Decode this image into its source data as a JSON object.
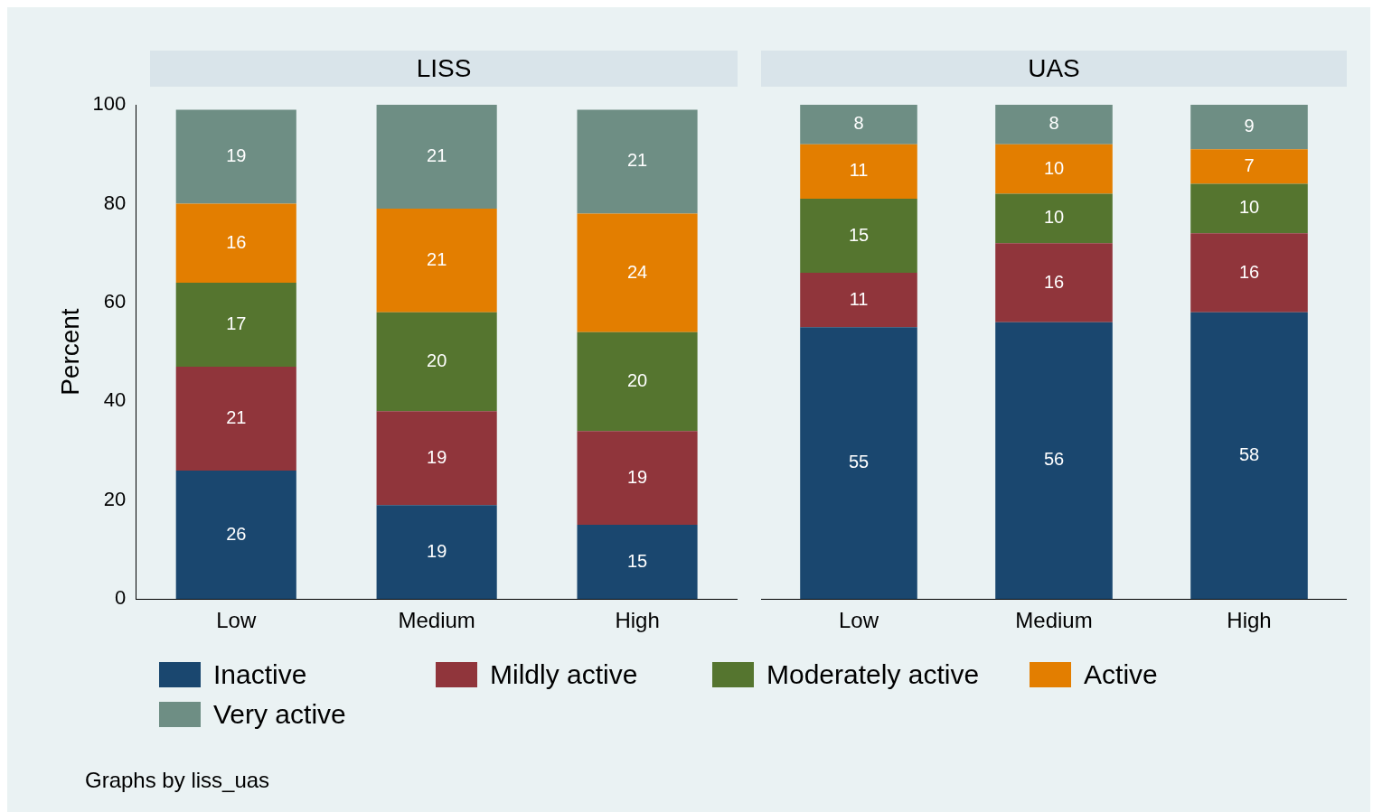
{
  "chart_data": [
    {
      "type": "bar",
      "title": "LISS",
      "ylabel": "Percent",
      "categories": [
        "Low",
        "Medium",
        "High"
      ],
      "stacked": true,
      "ylim": [
        0,
        100
      ],
      "yticks": [
        0,
        20,
        40,
        60,
        80,
        100
      ],
      "data_labels": true,
      "legend": "bottom",
      "annotations": [
        "Graphs by liss_uas"
      ],
      "series": [
        {
          "name": "Inactive",
          "color": "#1a476f",
          "values": [
            26,
            19,
            15
          ]
        },
        {
          "name": "Mildly active",
          "color": "#90353b",
          "values": [
            21,
            19,
            19
          ]
        },
        {
          "name": "Moderately active",
          "color": "#55752f",
          "values": [
            17,
            20,
            20
          ]
        },
        {
          "name": "Active",
          "color": "#e37e00",
          "values": [
            16,
            21,
            24
          ]
        },
        {
          "name": "Very active",
          "color": "#6e8e84",
          "values": [
            19,
            21,
            21
          ]
        }
      ]
    },
    {
      "type": "bar",
      "title": "UAS",
      "categories": [
        "Low",
        "Medium",
        "High"
      ],
      "stacked": true,
      "ylim": [
        0,
        100
      ],
      "yticks": [
        0,
        20,
        40,
        60,
        80,
        100
      ],
      "data_labels": true,
      "tick_labels": "x",
      "series": [
        {
          "color": "#1a476f",
          "values": [
            55,
            56,
            58
          ]
        },
        {
          "color": "#90353b",
          "values": [
            11,
            16,
            16
          ]
        },
        {
          "color": "#55752f",
          "values": [
            15,
            10,
            10
          ]
        },
        {
          "color": "#e37e00",
          "values": [
            11,
            10,
            7
          ]
        },
        {
          "color": "#6e8e84",
          "values": [
            8,
            8,
            9
          ]
        }
      ]
    }
  ]
}
